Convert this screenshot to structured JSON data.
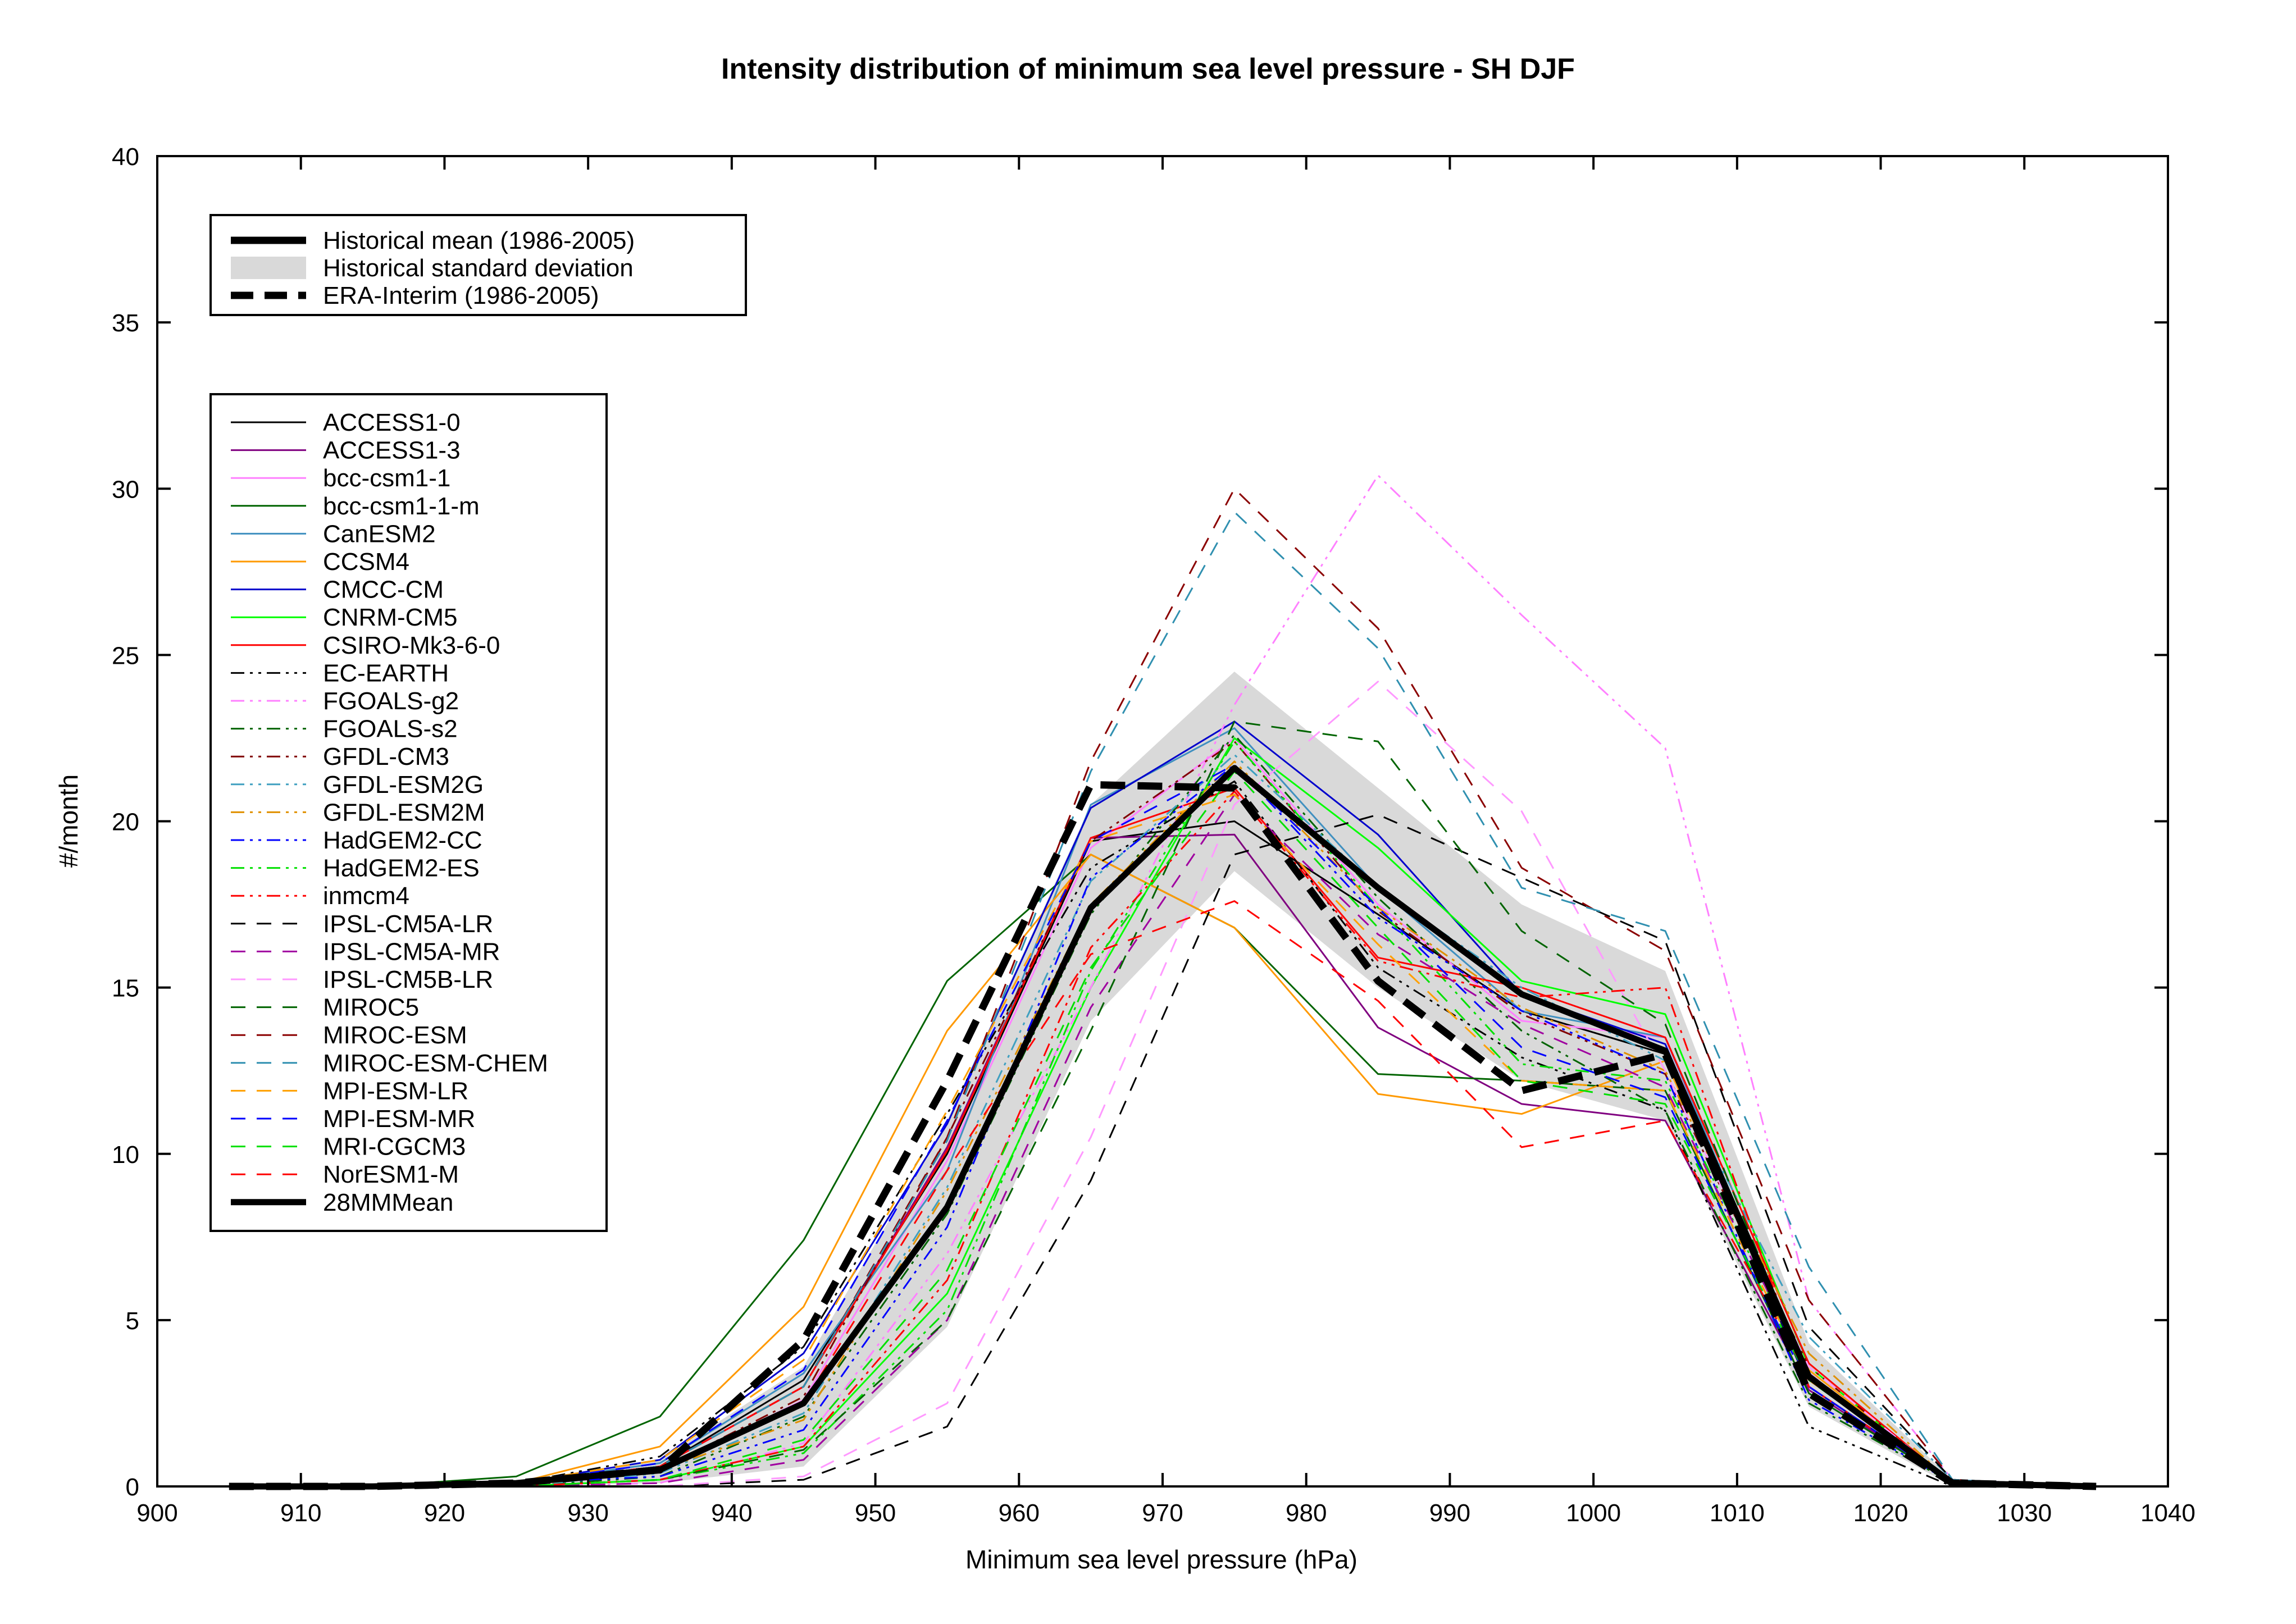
{
  "chart_data": {
    "type": "line",
    "title": "Intensity distribution of minimum sea level pressure - SH DJF",
    "xlabel": "Minimum sea level pressure (hPa)",
    "ylabel": "#/month",
    "xlim": [
      900,
      1040
    ],
    "ylim": [
      0,
      40
    ],
    "xticks": [
      900,
      910,
      920,
      930,
      940,
      950,
      960,
      970,
      980,
      990,
      1000,
      1010,
      1020,
      1030,
      1040
    ],
    "yticks": [
      0,
      5,
      10,
      15,
      20,
      25,
      30,
      35,
      40
    ],
    "x": [
      905,
      915,
      925,
      935,
      945,
      955,
      965,
      975,
      985,
      995,
      1005,
      1015,
      1025,
      1035
    ],
    "legend_top": {
      "position": "upper-left",
      "entries": [
        {
          "label": "Historical mean (1986-2005)",
          "style": "thick-solid",
          "color": "#000000"
        },
        {
          "label": "Historical standard deviation",
          "style": "band",
          "color": "#d9d9d9"
        },
        {
          "label": "ERA-Interim (1986-2005)",
          "style": "thick-dashed",
          "color": "#000000"
        }
      ]
    },
    "std_band": {
      "color": "#d9d9d9",
      "lower": [
        0,
        0,
        0,
        0.1,
        0.6,
        4.8,
        14.0,
        18.5,
        15.0,
        12.2,
        11.0,
        2.4,
        0,
        0
      ],
      "upper": [
        0,
        0,
        0.1,
        0.8,
        3.6,
        11.0,
        20.5,
        24.5,
        21.0,
        17.5,
        15.5,
        4.3,
        0.2,
        0
      ]
    },
    "series": [
      {
        "name": "ACCESS1-0",
        "color": "#000000",
        "dash": "solid",
        "width": 3,
        "values": [
          0,
          0,
          0.1,
          0.6,
          3.2,
          10.0,
          19.4,
          20.0,
          17.2,
          14.3,
          13.0,
          3.0,
          0.1,
          0
        ]
      },
      {
        "name": "ACCESS1-3",
        "color": "#800080",
        "dash": "solid",
        "width": 3,
        "values": [
          0,
          0,
          0.1,
          0.6,
          3.0,
          10.2,
          19.5,
          19.6,
          13.8,
          11.5,
          11.0,
          2.9,
          0.1,
          0
        ]
      },
      {
        "name": "bcc-csm1-1",
        "color": "#ff80ff",
        "dash": "solid",
        "width": 3,
        "values": [
          0,
          0,
          0.1,
          0.5,
          2.6,
          9.8,
          19.2,
          22.5,
          17.5,
          14.0,
          13.5,
          3.0,
          0.1,
          0
        ]
      },
      {
        "name": "bcc-csm1-1-m",
        "color": "#006400",
        "dash": "solid",
        "width": 3,
        "values": [
          0,
          0,
          0.3,
          2.1,
          7.4,
          15.2,
          19.0,
          16.8,
          12.4,
          12.2,
          11.9,
          2.8,
          0.1,
          0
        ]
      },
      {
        "name": "CanESM2",
        "color": "#4090c0",
        "dash": "solid",
        "width": 3,
        "values": [
          0,
          0,
          0.1,
          0.7,
          3.4,
          9.5,
          20.5,
          22.8,
          18.0,
          14.3,
          13.5,
          3.2,
          0.1,
          0
        ]
      },
      {
        "name": "CCSM4",
        "color": "#ff9900",
        "dash": "solid",
        "width": 3,
        "values": [
          0,
          0,
          0.1,
          1.2,
          5.4,
          13.7,
          19.0,
          16.8,
          11.8,
          11.2,
          12.8,
          3.5,
          0.1,
          0
        ]
      },
      {
        "name": "CMCC-CM",
        "color": "#0000cc",
        "dash": "solid",
        "width": 3,
        "values": [
          0,
          0,
          0.1,
          0.8,
          4.0,
          10.9,
          20.4,
          23.0,
          19.6,
          14.8,
          13.3,
          3.0,
          0.1,
          0
        ]
      },
      {
        "name": "CNRM-CM5",
        "color": "#00ff00",
        "dash": "solid",
        "width": 3,
        "values": [
          0,
          0,
          0,
          0.2,
          1.2,
          5.8,
          15.0,
          22.5,
          19.2,
          15.2,
          14.2,
          3.6,
          0.1,
          0
        ]
      },
      {
        "name": "CSIRO-Mk3-6-0",
        "color": "#ff0000",
        "dash": "solid",
        "width": 3,
        "values": [
          0,
          0,
          0.1,
          0.6,
          3.0,
          10.1,
          19.5,
          21.0,
          15.9,
          15.0,
          13.5,
          3.7,
          0.1,
          0
        ]
      },
      {
        "name": "EC-EARTH",
        "color": "#000000",
        "dash": "dashdotdot",
        "width": 3,
        "values": [
          0,
          0,
          0.1,
          0.9,
          4.2,
          11.2,
          18.6,
          21.2,
          15.6,
          12.9,
          11.3,
          1.8,
          0,
          0
        ]
      },
      {
        "name": "FGOALS-g2",
        "color": "#ff80ff",
        "dash": "dashdotdot",
        "width": 3,
        "values": [
          0,
          0,
          0,
          0.1,
          1.3,
          7.0,
          15.0,
          23.5,
          30.4,
          26.2,
          22.2,
          5.6,
          0.2,
          0
        ]
      },
      {
        "name": "FGOALS-s2",
        "color": "#006400",
        "dash": "dashdotdot",
        "width": 3,
        "values": [
          0,
          0,
          0,
          0.3,
          2.1,
          8.2,
          17.2,
          22.6,
          17.7,
          13.7,
          11.3,
          2.5,
          0.1,
          0
        ]
      },
      {
        "name": "GFDL-CM3",
        "color": "#800000",
        "dash": "dashdotdot",
        "width": 3,
        "values": [
          0,
          0,
          0.1,
          0.5,
          2.7,
          10.5,
          19.4,
          22.4,
          17.3,
          14.2,
          12.4,
          3.6,
          0.1,
          0
        ]
      },
      {
        "name": "GFDL-ESM2G",
        "color": "#40a0c0",
        "dash": "dashdotdot",
        "width": 3,
        "values": [
          0,
          0,
          0,
          0.4,
          2.2,
          9.0,
          18.2,
          22.0,
          18.0,
          15.0,
          12.8,
          4.5,
          0.2,
          0
        ]
      },
      {
        "name": "GFDL-ESM2M",
        "color": "#e09000",
        "dash": "dashdotdot",
        "width": 3,
        "values": [
          0,
          0,
          0,
          0.5,
          2.0,
          8.9,
          17.5,
          21.8,
          17.4,
          14.4,
          12.5,
          4.0,
          0.1,
          0
        ]
      },
      {
        "name": "HadGEM2-CC",
        "color": "#0000ff",
        "dash": "dashdotdot",
        "width": 3,
        "values": [
          0,
          0,
          0.1,
          0.3,
          1.7,
          7.8,
          18.3,
          21.7,
          17.1,
          14.3,
          12.4,
          2.6,
          0.1,
          0
        ]
      },
      {
        "name": "HadGEM2-ES",
        "color": "#00e000",
        "dash": "dashdotdot",
        "width": 3,
        "values": [
          0,
          0,
          0,
          0.2,
          1.0,
          5.3,
          15.5,
          22.4,
          17.4,
          12.7,
          12.2,
          3.3,
          0.1,
          0
        ]
      },
      {
        "name": "inmcm4",
        "color": "#ff0000",
        "dash": "dashdotdot",
        "width": 3,
        "values": [
          0,
          0,
          0,
          0.2,
          1.2,
          6.2,
          16.2,
          20.9,
          15.8,
          14.7,
          15.0,
          3.0,
          0.1,
          0
        ]
      },
      {
        "name": "IPSL-CM5A-LR",
        "color": "#000000",
        "dash": "dashed",
        "width": 3,
        "values": [
          0,
          0,
          0,
          0,
          0.2,
          1.8,
          9.2,
          19.0,
          20.2,
          18.3,
          16.4,
          4.8,
          0.2,
          0
        ]
      },
      {
        "name": "IPSL-CM5A-MR",
        "color": "#a000a0",
        "dash": "dashed",
        "width": 3,
        "values": [
          0,
          0,
          0,
          0.1,
          0.8,
          5.0,
          14.4,
          20.8,
          16.6,
          13.9,
          12.0,
          3.4,
          0.1,
          0
        ]
      },
      {
        "name": "IPSL-CM5B-LR",
        "color": "#ff99ff",
        "dash": "dashed",
        "width": 3,
        "values": [
          0,
          0,
          0,
          0,
          0.3,
          2.5,
          10.5,
          20.5,
          24.2,
          20.3,
          12.5,
          3.6,
          0.1,
          0
        ]
      },
      {
        "name": "MIROC5",
        "color": "#006400",
        "dash": "dashed",
        "width": 3,
        "values": [
          0,
          0,
          0,
          0.2,
          1.1,
          5.0,
          13.7,
          23.0,
          22.4,
          16.7,
          13.9,
          3.2,
          0.1,
          0
        ]
      },
      {
        "name": "MIROC-ESM",
        "color": "#8b0000",
        "dash": "dashed",
        "width": 3,
        "values": [
          0,
          0,
          0.1,
          0.6,
          3.0,
          10.5,
          21.8,
          30.0,
          25.8,
          18.6,
          16.1,
          5.6,
          0.2,
          0
        ]
      },
      {
        "name": "MIROC-ESM-CHEM",
        "color": "#3090b0",
        "dash": "dashed",
        "width": 3,
        "values": [
          0,
          0,
          0.1,
          0.6,
          3.0,
          10.4,
          21.5,
          29.3,
          25.2,
          18.0,
          16.7,
          6.6,
          0.2,
          0
        ]
      },
      {
        "name": "MPI-ESM-LR",
        "color": "#ffa000",
        "dash": "dashed",
        "width": 3,
        "values": [
          0,
          0,
          0.1,
          0.8,
          3.8,
          11.3,
          19.4,
          20.8,
          16.3,
          12.2,
          11.9,
          3.2,
          0.1,
          0
        ]
      },
      {
        "name": "MPI-ESM-MR",
        "color": "#0000ff",
        "dash": "dashed",
        "width": 3,
        "values": [
          0,
          0,
          0.1,
          0.7,
          3.5,
          11.0,
          19.4,
          21.7,
          17.4,
          13.2,
          11.7,
          3.0,
          0.1,
          0
        ]
      },
      {
        "name": "MRI-CGCM3",
        "color": "#00e000",
        "dash": "dashed",
        "width": 3,
        "values": [
          0,
          0,
          0,
          0.2,
          1.4,
          6.5,
          15.6,
          21.5,
          16.8,
          12.2,
          11.5,
          3.2,
          0.1,
          0
        ]
      },
      {
        "name": "NorESM1-M",
        "color": "#ff0000",
        "dash": "dashed",
        "width": 3,
        "values": [
          0,
          0,
          0.1,
          0.5,
          2.5,
          9.5,
          16.0,
          17.6,
          14.6,
          10.2,
          11.0,
          3.3,
          0.1,
          0
        ]
      },
      {
        "name": "28MMMean",
        "color": "#000000",
        "dash": "solid",
        "width": 11,
        "values": [
          0,
          0,
          0.1,
          0.5,
          2.5,
          8.4,
          17.4,
          21.6,
          18.0,
          14.8,
          13.1,
          3.3,
          0.1,
          0
        ]
      }
    ],
    "era_interim": {
      "name": "ERA-Interim (1986-2005)",
      "color": "#000000",
      "dash": "thick-dashed",
      "values": [
        0,
        0,
        0.1,
        0.5,
        4.4,
        12.2,
        21.1,
        21.0,
        15.2,
        11.9,
        13.0,
        2.8,
        0.1,
        0
      ]
    }
  }
}
